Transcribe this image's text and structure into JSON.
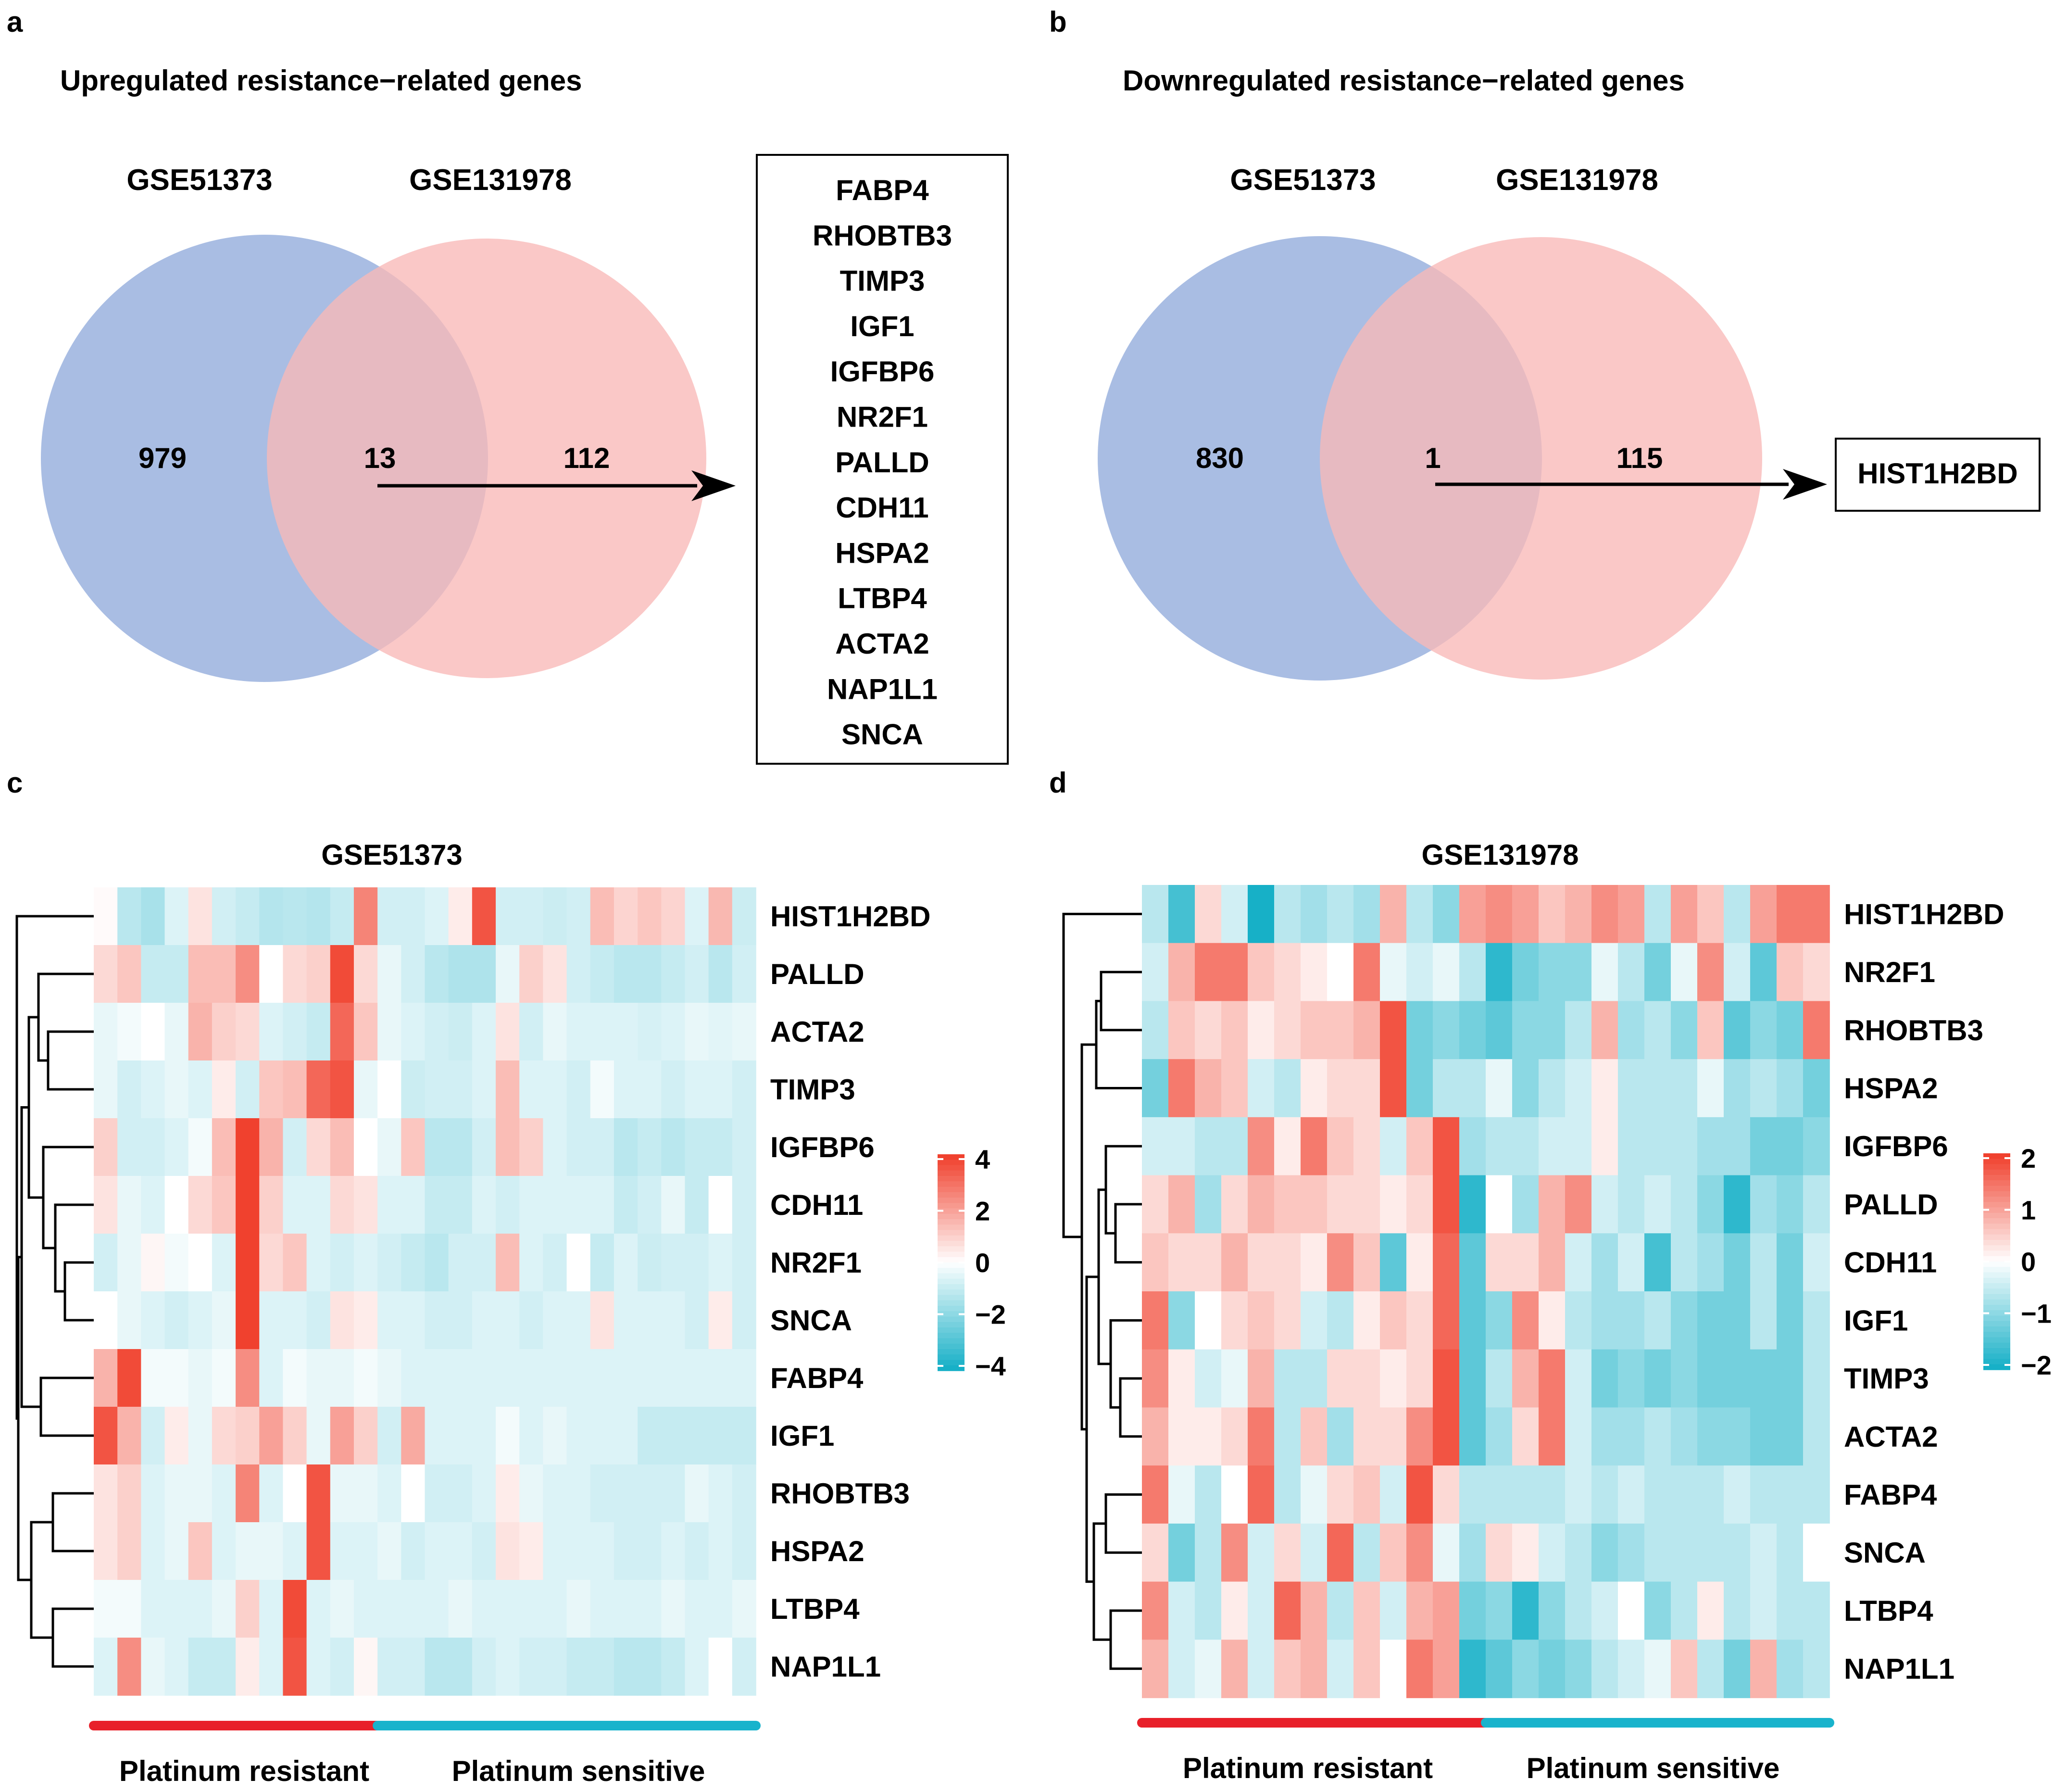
{
  "panel_a": {
    "letter": "a",
    "title": "Upregulated resistance−related genes",
    "set1_label": "GSE51373",
    "set2_label": "GSE131978",
    "only1": "979",
    "overlap": "13",
    "only2": "112",
    "genes": [
      "FABP4",
      "RHOBTB3",
      "TIMP3",
      "IGF1",
      "IGFBP6",
      "NR2F1",
      "PALLD",
      "CDH11",
      "HSPA2",
      "LTBP4",
      "ACTA2",
      "NAP1L1",
      "SNCA"
    ]
  },
  "panel_b": {
    "letter": "b",
    "title": "Downregulated resistance−related genes",
    "set1_label": "GSE51373",
    "set2_label": "GSE131978",
    "only1": "830",
    "overlap": "1",
    "only2": "115",
    "genes": [
      "HIST1H2BD"
    ]
  },
  "colors": {
    "venn_left": "#a9bde3",
    "venn_right": "#f9b9b7",
    "heat_high": "#f0412e",
    "heat_mid": "#ffffff",
    "heat_low": "#17b0c7",
    "bar_resistant": "#e8202a",
    "bar_sensitive": "#19b3cc"
  },
  "chart_data": [
    {
      "type": "heatmap",
      "panel": "c",
      "title": "GSE51373",
      "rows": [
        "HIST1H2BD",
        "PALLD",
        "ACTA2",
        "TIMP3",
        "IGFBP6",
        "CDH11",
        "NR2F1",
        "SNCA",
        "FABP4",
        "IGF1",
        "RHOBTB3",
        "HSPA2",
        "LTBP4",
        "NAP1L1"
      ],
      "n_cols": 28,
      "resistant_cols": 12,
      "group_labels": [
        "Platinum resistant",
        "Platinum sensitive"
      ],
      "legend_ticks": [
        "4",
        "2",
        "0",
        "−2",
        "−4"
      ],
      "vmin": -4,
      "vmax": 4,
      "values": [
        [
          0.1,
          -1.2,
          -1.5,
          -0.6,
          0.6,
          -0.8,
          -1.0,
          -1.3,
          -1.2,
          -1.3,
          -1.0,
          2.6,
          -0.8,
          -0.8,
          -0.6,
          0.4,
          3.6,
          -0.8,
          -0.8,
          -0.9,
          -0.8,
          1.4,
          0.9,
          1.2,
          0.9,
          -0.6,
          1.5,
          -0.9
        ],
        [
          0.8,
          1.2,
          -1.0,
          -1.0,
          1.4,
          1.4,
          2.4,
          0.0,
          0.8,
          1.0,
          3.8,
          0.8,
          -0.4,
          -0.8,
          -1.2,
          -1.4,
          -1.4,
          -0.4,
          1.0,
          0.6,
          -0.8,
          -1.0,
          -1.2,
          -1.2,
          -1.0,
          -0.8,
          -1.2,
          -0.8
        ],
        [
          -0.4,
          -0.2,
          0.0,
          -0.4,
          1.6,
          1.0,
          0.8,
          -0.6,
          -0.8,
          -1.0,
          3.2,
          1.2,
          -0.4,
          -0.6,
          -0.8,
          -0.9,
          -0.6,
          0.6,
          -0.8,
          -0.4,
          -0.6,
          -0.6,
          -0.6,
          -0.7,
          -0.6,
          -0.4,
          -0.5,
          -0.4
        ],
        [
          -0.4,
          -0.8,
          -0.6,
          -0.4,
          -0.6,
          0.4,
          -0.8,
          1.2,
          1.4,
          3.2,
          3.6,
          -0.4,
          0.0,
          -0.9,
          -0.8,
          -0.8,
          -0.6,
          1.4,
          -0.6,
          -0.6,
          -0.8,
          -0.2,
          -0.6,
          -0.6,
          -0.8,
          -0.6,
          -0.6,
          -0.8
        ],
        [
          1.0,
          -0.8,
          -0.8,
          -0.6,
          -0.2,
          1.4,
          4.0,
          1.6,
          -0.8,
          0.8,
          1.4,
          0.0,
          -0.4,
          1.2,
          -1.2,
          -1.2,
          -0.8,
          1.4,
          1.0,
          -0.6,
          -0.8,
          -0.8,
          -1.2,
          -1.0,
          -1.2,
          -1.0,
          -1.0,
          -0.8
        ],
        [
          0.6,
          -0.4,
          -0.6,
          0.0,
          0.8,
          1.2,
          4.0,
          1.0,
          -0.6,
          -0.6,
          0.8,
          0.6,
          -0.6,
          -0.6,
          -1.0,
          -1.0,
          -0.6,
          -0.8,
          -0.6,
          -0.6,
          -0.6,
          -0.6,
          -1.0,
          -0.8,
          -0.4,
          -1.0,
          0.0,
          -0.8
        ],
        [
          -0.8,
          -0.4,
          0.2,
          -0.2,
          0.0,
          -0.6,
          4.0,
          0.8,
          1.2,
          -0.6,
          -0.8,
          -0.6,
          -0.8,
          -1.0,
          -1.2,
          -0.8,
          -0.8,
          1.4,
          -0.6,
          -0.8,
          0.0,
          -1.0,
          -0.6,
          -0.9,
          -0.8,
          -0.8,
          -0.6,
          -0.8
        ],
        [
          0.0,
          -0.4,
          -0.6,
          -0.8,
          -0.6,
          -0.4,
          4.0,
          -0.6,
          -0.6,
          -0.8,
          0.6,
          0.4,
          -0.6,
          -0.6,
          -0.8,
          -0.8,
          -0.6,
          -0.6,
          -0.8,
          -0.6,
          -0.6,
          0.6,
          -0.6,
          -0.6,
          -0.6,
          -0.8,
          0.4,
          -0.8
        ],
        [
          1.6,
          3.8,
          -0.2,
          -0.2,
          -0.4,
          -0.2,
          2.4,
          -0.6,
          -0.2,
          -0.4,
          -0.4,
          -0.2,
          -0.4,
          -0.6,
          -0.6,
          -0.6,
          -0.6,
          -0.6,
          -0.6,
          -0.6,
          -0.6,
          -0.6,
          -0.6,
          -0.6,
          -0.6,
          -0.6,
          -0.6,
          -0.6
        ],
        [
          3.6,
          1.6,
          -0.8,
          0.4,
          -0.4,
          0.8,
          1.0,
          2.0,
          1.0,
          -0.4,
          2.0,
          1.0,
          -0.8,
          1.8,
          -0.6,
          -0.6,
          -0.6,
          -0.2,
          -0.6,
          -0.4,
          -0.6,
          -0.6,
          -0.6,
          -1.0,
          -1.0,
          -1.0,
          -1.0,
          -1.0
        ],
        [
          0.6,
          1.0,
          -0.6,
          -0.4,
          -0.4,
          -0.6,
          2.6,
          -0.6,
          0.0,
          3.6,
          -0.4,
          -0.4,
          -0.6,
          0.0,
          -0.8,
          -0.8,
          -0.6,
          0.4,
          -0.4,
          -0.6,
          -0.6,
          -0.8,
          -0.8,
          -0.8,
          -0.8,
          -0.4,
          -0.6,
          -0.8
        ],
        [
          0.6,
          1.0,
          -0.6,
          -0.4,
          1.2,
          -0.6,
          -0.4,
          -0.4,
          -0.6,
          3.6,
          -0.6,
          -0.6,
          -0.4,
          -0.8,
          -0.6,
          -0.6,
          -0.8,
          0.6,
          0.4,
          -0.6,
          -0.6,
          -0.6,
          -0.8,
          -0.8,
          -0.6,
          -0.8,
          -0.6,
          -0.8
        ],
        [
          -0.2,
          -0.2,
          -0.6,
          -0.6,
          -0.6,
          -0.4,
          1.0,
          -0.6,
          3.8,
          -0.6,
          -0.4,
          -0.6,
          -0.6,
          -0.6,
          -0.6,
          -0.4,
          -0.6,
          -0.6,
          -0.6,
          -0.6,
          -0.4,
          -0.6,
          -0.6,
          -0.6,
          -0.4,
          -0.6,
          -0.6,
          -0.4
        ],
        [
          -0.6,
          2.4,
          -0.4,
          -0.6,
          -1.0,
          -1.0,
          0.4,
          -0.6,
          3.6,
          -0.6,
          -0.8,
          0.2,
          -0.8,
          -0.8,
          -1.2,
          -1.2,
          -0.8,
          -0.6,
          -0.8,
          -0.8,
          -1.0,
          -1.0,
          -1.2,
          -1.2,
          -1.0,
          -0.6,
          0.0,
          -0.8
        ]
      ]
    },
    {
      "type": "heatmap",
      "panel": "d",
      "title": "GSE131978",
      "rows": [
        "HIST1H2BD",
        "NR2F1",
        "RHOBTB3",
        "HSPA2",
        "IGFBP6",
        "PALLD",
        "CDH11",
        "IGF1",
        "TIMP3",
        "ACTA2",
        "FABP4",
        "SNCA",
        "LTBP4",
        "NAP1L1"
      ],
      "n_cols": 26,
      "resistant_cols": 13,
      "group_labels": [
        "Platinum resistant",
        "Platinum sensitive"
      ],
      "legend_ticks": [
        "2",
        "1",
        "0",
        "−1",
        "−2"
      ],
      "vmin": -2,
      "vmax": 2,
      "values": [
        [
          -0.6,
          -1.6,
          0.4,
          -0.4,
          -2.0,
          -0.6,
          -0.8,
          -0.6,
          -0.8,
          0.8,
          -0.6,
          -1.0,
          1.0,
          1.2,
          1.0,
          0.6,
          0.8,
          1.2,
          1.0,
          -0.6,
          1.0,
          0.6,
          -0.6,
          1.0,
          1.4,
          1.4
        ],
        [
          -0.4,
          0.8,
          1.4,
          1.4,
          0.6,
          0.4,
          0.2,
          0.0,
          1.4,
          -0.2,
          -0.4,
          -0.2,
          -0.6,
          -1.8,
          -1.2,
          -1.0,
          -1.0,
          -0.2,
          -0.6,
          -1.2,
          -0.2,
          1.2,
          -0.4,
          -1.4,
          0.6,
          0.4
        ],
        [
          -0.6,
          0.6,
          0.4,
          0.6,
          0.2,
          0.4,
          0.6,
          0.6,
          0.8,
          1.8,
          -1.2,
          -1.0,
          -1.2,
          -1.4,
          -1.0,
          -1.0,
          -0.6,
          0.8,
          -0.8,
          -0.6,
          -1.0,
          0.6,
          -1.4,
          -1.0,
          -1.2,
          1.4
        ],
        [
          -1.2,
          1.4,
          0.8,
          0.6,
          -0.4,
          -0.6,
          0.2,
          0.4,
          0.4,
          1.8,
          -1.2,
          -0.6,
          -0.6,
          -0.2,
          -1.0,
          -0.6,
          -0.4,
          0.2,
          -0.6,
          -0.6,
          -0.6,
          -0.2,
          -0.8,
          -0.6,
          -0.8,
          -1.2
        ],
        [
          -0.4,
          -0.4,
          -0.6,
          -0.6,
          1.2,
          0.2,
          1.4,
          0.6,
          0.4,
          -0.4,
          0.6,
          1.8,
          -0.8,
          -0.6,
          -0.6,
          -0.4,
          -0.4,
          0.2,
          -0.6,
          -0.6,
          -0.6,
          -0.8,
          -0.8,
          -1.2,
          -1.2,
          -1.0
        ],
        [
          0.4,
          0.8,
          -0.8,
          0.4,
          0.8,
          0.6,
          0.6,
          0.4,
          0.4,
          0.2,
          0.4,
          1.8,
          -1.8,
          0.0,
          -0.8,
          0.8,
          1.2,
          -0.4,
          -0.6,
          -0.4,
          -0.6,
          -1.0,
          -1.8,
          -0.8,
          -1.0,
          -0.6
        ],
        [
          0.6,
          0.4,
          0.4,
          0.8,
          0.4,
          0.4,
          0.2,
          1.2,
          0.6,
          -1.4,
          0.2,
          1.6,
          -1.4,
          0.4,
          0.4,
          0.8,
          -0.4,
          -0.8,
          -0.4,
          -1.6,
          -0.6,
          -0.8,
          -1.2,
          -0.6,
          -1.2,
          -0.4
        ],
        [
          1.4,
          -1.0,
          0.0,
          0.4,
          0.6,
          0.4,
          -0.4,
          -0.6,
          0.2,
          0.6,
          0.4,
          1.6,
          -1.4,
          -1.0,
          1.2,
          0.2,
          -0.6,
          -0.8,
          -0.8,
          -0.6,
          -1.0,
          -1.2,
          -1.2,
          -0.6,
          -1.2,
          -0.6
        ],
        [
          1.2,
          0.2,
          -0.4,
          -0.2,
          0.8,
          -0.6,
          -0.6,
          0.4,
          0.4,
          0.2,
          0.4,
          1.8,
          -1.4,
          -0.6,
          0.8,
          1.4,
          -0.4,
          -1.2,
          -1.0,
          -1.2,
          -1.0,
          -1.2,
          -1.2,
          -1.2,
          -1.2,
          -0.6
        ],
        [
          0.8,
          0.2,
          0.2,
          0.4,
          1.4,
          -0.6,
          0.6,
          -0.8,
          0.4,
          0.4,
          1.2,
          1.8,
          -1.4,
          -0.8,
          0.4,
          1.4,
          -0.4,
          -0.8,
          -0.8,
          -0.6,
          -0.8,
          -1.0,
          -1.0,
          -1.2,
          -1.2,
          -0.6
        ],
        [
          1.4,
          -0.2,
          -0.6,
          0.0,
          1.6,
          -0.6,
          -0.2,
          0.4,
          0.6,
          -0.4,
          1.8,
          0.4,
          -0.6,
          -0.6,
          -0.6,
          -0.6,
          -0.4,
          -0.6,
          -0.4,
          -0.6,
          -0.6,
          -0.6,
          -0.4,
          -0.6,
          -0.6,
          -0.6
        ],
        [
          0.4,
          -1.2,
          -0.6,
          1.2,
          -0.4,
          0.4,
          -0.4,
          1.6,
          -0.6,
          0.6,
          1.2,
          -0.2,
          -0.8,
          0.4,
          0.2,
          -0.4,
          -0.6,
          -1.0,
          -0.8,
          -0.6,
          -0.6,
          -0.6,
          -0.6,
          -0.4,
          -0.6,
          0.0
        ],
        [
          1.2,
          -0.4,
          -0.6,
          0.2,
          -0.4,
          1.6,
          0.8,
          -0.6,
          0.6,
          -0.4,
          0.8,
          1.0,
          -1.2,
          -1.0,
          -1.8,
          -1.0,
          -0.6,
          -0.4,
          0.0,
          -1.0,
          -0.6,
          0.2,
          -0.6,
          -0.4,
          -0.6,
          -0.6
        ],
        [
          0.8,
          -0.4,
          -0.2,
          0.8,
          -0.4,
          0.6,
          0.8,
          -0.4,
          0.6,
          0.0,
          1.4,
          1.0,
          -1.8,
          -1.4,
          -1.0,
          -1.2,
          -1.0,
          -0.6,
          -0.4,
          -0.2,
          0.6,
          -0.6,
          -1.2,
          0.8,
          -0.8,
          -0.6
        ]
      ]
    }
  ]
}
